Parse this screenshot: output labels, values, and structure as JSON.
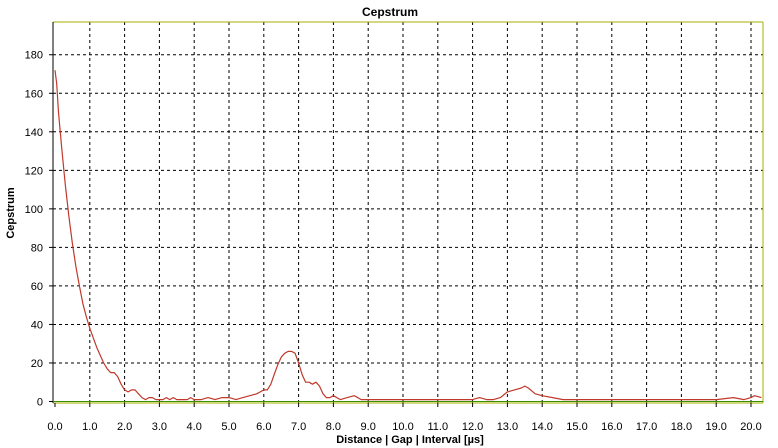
{
  "chart_data": {
    "type": "line",
    "title": "Cepstrum",
    "xlabel": "Distance | Gap | Interval [µs]",
    "ylabel": "Cepstrum",
    "xlim": [
      0.0,
      20.3
    ],
    "ylim": [
      0,
      197
    ],
    "grid": true,
    "x_ticks": [
      0.0,
      1.0,
      2.0,
      3.0,
      4.0,
      5.0,
      6.0,
      7.0,
      8.0,
      9.0,
      10.0,
      11.0,
      12.0,
      13.0,
      14.0,
      15.0,
      16.0,
      17.0,
      18.0,
      19.0,
      20.0
    ],
    "x_tick_labels": [
      "0.0",
      "1.0",
      "2.0",
      "3.0",
      "4.0",
      "5.0",
      "6.0",
      "7.0",
      "8.0",
      "9.0",
      "10.0",
      "11.0",
      "12.0",
      "13.0",
      "14.0",
      "15.0",
      "16.0",
      "17.0",
      "18.0",
      "19.0",
      "20.0"
    ],
    "y_ticks": [
      0,
      20,
      40,
      60,
      80,
      100,
      120,
      140,
      160,
      180
    ],
    "y_tick_labels": [
      "0",
      "20",
      "40",
      "60",
      "80",
      "100",
      "120",
      "140",
      "160",
      "180"
    ],
    "series": [
      {
        "color": "#c0392b",
        "x": [
          0.0,
          0.05,
          0.1,
          0.2,
          0.3,
          0.4,
          0.5,
          0.6,
          0.7,
          0.8,
          0.9,
          1.0,
          1.1,
          1.2,
          1.3,
          1.4,
          1.5,
          1.6,
          1.7,
          1.8,
          1.9,
          2.0,
          2.1,
          2.2,
          2.3,
          2.4,
          2.5,
          2.6,
          2.7,
          2.8,
          2.9,
          3.0,
          3.1,
          3.2,
          3.3,
          3.4,
          3.5,
          3.6,
          3.7,
          3.8,
          3.9,
          4.0,
          4.2,
          4.4,
          4.6,
          4.8,
          5.0,
          5.2,
          5.4,
          5.6,
          5.8,
          6.0,
          6.1,
          6.2,
          6.3,
          6.4,
          6.5,
          6.6,
          6.7,
          6.8,
          6.9,
          7.0,
          7.1,
          7.2,
          7.3,
          7.4,
          7.5,
          7.6,
          7.7,
          7.8,
          7.9,
          8.0,
          8.2,
          8.4,
          8.6,
          8.8,
          9.0,
          9.5,
          10.0,
          11.0,
          11.8,
          12.0,
          12.2,
          12.4,
          12.6,
          12.8,
          13.0,
          13.2,
          13.4,
          13.5,
          13.6,
          13.8,
          14.0,
          14.3,
          14.6,
          15.0,
          15.5,
          16.0,
          17.0,
          18.0,
          19.0,
          19.5,
          19.8,
          20.0,
          20.1,
          20.3
        ],
        "y": [
          172,
          165,
          150,
          130,
          112,
          96,
          82,
          70,
          60,
          51,
          44,
          38,
          33,
          28,
          24,
          20,
          17,
          15,
          15,
          13,
          9,
          6,
          5,
          6,
          6,
          4,
          2,
          1,
          2,
          2,
          1,
          1,
          1,
          2,
          1,
          2,
          1,
          1,
          1,
          1,
          2,
          1,
          1,
          2,
          1,
          2,
          2,
          1,
          2,
          3,
          4,
          6,
          6,
          9,
          14,
          19,
          23,
          25,
          26,
          26,
          25,
          20,
          14,
          10,
          10,
          9,
          10,
          8,
          4,
          2,
          2,
          3,
          1,
          2,
          3,
          1,
          1,
          1,
          1,
          1,
          1,
          1,
          2,
          1,
          1,
          2,
          5,
          6,
          7,
          8,
          7,
          4,
          3,
          2,
          1,
          1,
          1,
          1,
          1,
          1,
          1,
          2,
          1,
          2,
          3,
          2
        ]
      }
    ]
  }
}
